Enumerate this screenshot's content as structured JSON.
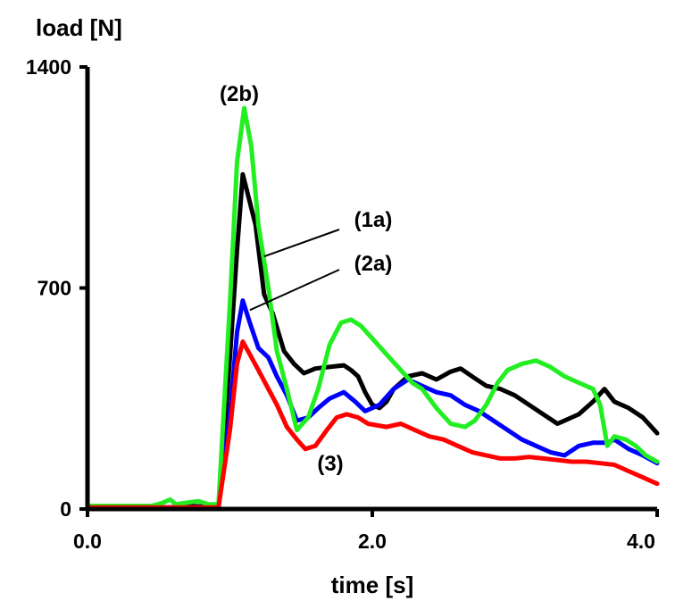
{
  "chart_data": {
    "type": "line",
    "ylabel": "load [N]",
    "xlabel": "time [s]",
    "xlim": [
      0,
      4
    ],
    "ylim": [
      0,
      1400
    ],
    "xticks": [
      {
        "value": 0,
        "label": "0.0"
      },
      {
        "value": 2,
        "label": "2.0"
      },
      {
        "value": 4,
        "label": "4.0"
      }
    ],
    "yticks": [
      {
        "value": 0,
        "label": "0"
      },
      {
        "value": 700,
        "label": "700"
      },
      {
        "value": 1400,
        "label": "1400"
      }
    ],
    "grid": false,
    "legend": "none",
    "series": [
      {
        "name": "(1a)",
        "color": "#000000",
        "points": [
          [
            0,
            5
          ],
          [
            0.6,
            5
          ],
          [
            0.7,
            10
          ],
          [
            0.9,
            6
          ],
          [
            0.92,
            10
          ],
          [
            1.0,
            480
          ],
          [
            1.05,
            820
          ],
          [
            1.09,
            1060
          ],
          [
            1.13,
            990
          ],
          [
            1.18,
            900
          ],
          [
            1.24,
            680
          ],
          [
            1.3,
            620
          ],
          [
            1.38,
            500
          ],
          [
            1.45,
            460
          ],
          [
            1.52,
            430
          ],
          [
            1.6,
            445
          ],
          [
            1.7,
            450
          ],
          [
            1.8,
            455
          ],
          [
            1.85,
            440
          ],
          [
            1.9,
            420
          ],
          [
            1.95,
            370
          ],
          [
            2.0,
            330
          ],
          [
            2.05,
            320
          ],
          [
            2.1,
            340
          ],
          [
            2.15,
            380
          ],
          [
            2.25,
            420
          ],
          [
            2.35,
            430
          ],
          [
            2.45,
            410
          ],
          [
            2.55,
            435
          ],
          [
            2.62,
            445
          ],
          [
            2.7,
            420
          ],
          [
            2.8,
            390
          ],
          [
            2.9,
            380
          ],
          [
            3.0,
            360
          ],
          [
            3.1,
            330
          ],
          [
            3.2,
            300
          ],
          [
            3.3,
            270
          ],
          [
            3.45,
            300
          ],
          [
            3.55,
            340
          ],
          [
            3.63,
            380
          ],
          [
            3.7,
            340
          ],
          [
            3.8,
            320
          ],
          [
            3.9,
            290
          ],
          [
            4.0,
            240
          ]
        ]
      },
      {
        "name": "(2a)",
        "color": "#0000ff",
        "points": [
          [
            0,
            5
          ],
          [
            0.92,
            5
          ],
          [
            1.0,
            300
          ],
          [
            1.05,
            560
          ],
          [
            1.09,
            660
          ],
          [
            1.14,
            590
          ],
          [
            1.2,
            510
          ],
          [
            1.27,
            480
          ],
          [
            1.33,
            420
          ],
          [
            1.4,
            360
          ],
          [
            1.47,
            280
          ],
          [
            1.55,
            290
          ],
          [
            1.62,
            320
          ],
          [
            1.7,
            350
          ],
          [
            1.8,
            370
          ],
          [
            1.88,
            340
          ],
          [
            1.95,
            310
          ],
          [
            2.05,
            330
          ],
          [
            2.15,
            380
          ],
          [
            2.25,
            410
          ],
          [
            2.35,
            390
          ],
          [
            2.45,
            370
          ],
          [
            2.55,
            360
          ],
          [
            2.65,
            330
          ],
          [
            2.75,
            310
          ],
          [
            2.85,
            280
          ],
          [
            2.95,
            250
          ],
          [
            3.05,
            220
          ],
          [
            3.15,
            200
          ],
          [
            3.25,
            180
          ],
          [
            3.35,
            170
          ],
          [
            3.45,
            200
          ],
          [
            3.55,
            210
          ],
          [
            3.65,
            210
          ],
          [
            3.7,
            220
          ],
          [
            3.8,
            190
          ],
          [
            3.9,
            170
          ],
          [
            4.0,
            145
          ]
        ]
      },
      {
        "name": "(2b)",
        "color": "#22ee22",
        "points": [
          [
            0,
            10
          ],
          [
            0.45,
            10
          ],
          [
            0.52,
            18
          ],
          [
            0.58,
            30
          ],
          [
            0.62,
            15
          ],
          [
            0.7,
            20
          ],
          [
            0.78,
            25
          ],
          [
            0.85,
            15
          ],
          [
            0.92,
            15
          ],
          [
            1.0,
            650
          ],
          [
            1.05,
            1100
          ],
          [
            1.1,
            1270
          ],
          [
            1.15,
            1150
          ],
          [
            1.2,
            900
          ],
          [
            1.27,
            700
          ],
          [
            1.33,
            500
          ],
          [
            1.4,
            380
          ],
          [
            1.47,
            250
          ],
          [
            1.55,
            290
          ],
          [
            1.62,
            380
          ],
          [
            1.7,
            520
          ],
          [
            1.78,
            590
          ],
          [
            1.85,
            600
          ],
          [
            1.92,
            580
          ],
          [
            2.0,
            540
          ],
          [
            2.1,
            490
          ],
          [
            2.2,
            440
          ],
          [
            2.28,
            400
          ],
          [
            2.35,
            380
          ],
          [
            2.45,
            320
          ],
          [
            2.55,
            270
          ],
          [
            2.65,
            260
          ],
          [
            2.72,
            280
          ],
          [
            2.8,
            330
          ],
          [
            2.88,
            400
          ],
          [
            2.95,
            440
          ],
          [
            3.05,
            460
          ],
          [
            3.15,
            470
          ],
          [
            3.25,
            450
          ],
          [
            3.35,
            420
          ],
          [
            3.45,
            400
          ],
          [
            3.55,
            380
          ],
          [
            3.6,
            330
          ],
          [
            3.65,
            200
          ],
          [
            3.7,
            230
          ],
          [
            3.78,
            220
          ],
          [
            3.85,
            200
          ],
          [
            3.92,
            170
          ],
          [
            4.0,
            150
          ]
        ]
      },
      {
        "name": "(3)",
        "color": "#ff0000",
        "points": [
          [
            0,
            5
          ],
          [
            0.92,
            5
          ],
          [
            1.0,
            250
          ],
          [
            1.05,
            460
          ],
          [
            1.09,
            530
          ],
          [
            1.14,
            490
          ],
          [
            1.2,
            440
          ],
          [
            1.27,
            380
          ],
          [
            1.33,
            330
          ],
          [
            1.4,
            260
          ],
          [
            1.47,
            220
          ],
          [
            1.53,
            190
          ],
          [
            1.6,
            200
          ],
          [
            1.68,
            250
          ],
          [
            1.75,
            290
          ],
          [
            1.82,
            300
          ],
          [
            1.9,
            290
          ],
          [
            1.97,
            270
          ],
          [
            2.1,
            260
          ],
          [
            2.2,
            270
          ],
          [
            2.3,
            250
          ],
          [
            2.4,
            230
          ],
          [
            2.5,
            220
          ],
          [
            2.6,
            200
          ],
          [
            2.7,
            180
          ],
          [
            2.8,
            170
          ],
          [
            2.9,
            160
          ],
          [
            3.0,
            160
          ],
          [
            3.1,
            165
          ],
          [
            3.2,
            160
          ],
          [
            3.3,
            155
          ],
          [
            3.4,
            150
          ],
          [
            3.5,
            150
          ],
          [
            3.6,
            145
          ],
          [
            3.7,
            140
          ],
          [
            3.8,
            120
          ],
          [
            3.9,
            100
          ],
          [
            4.0,
            80
          ]
        ]
      }
    ],
    "annotations": [
      {
        "text": "(2b)",
        "series": "(2b)",
        "leader": false
      },
      {
        "text": "(1a)",
        "series": "(1a)",
        "leader": true,
        "anchor": [
          1.24,
          800
        ]
      },
      {
        "text": "(2a)",
        "series": "(2a)",
        "leader": true,
        "anchor": [
          1.14,
          630
        ]
      },
      {
        "text": "(3)",
        "series": "(3)",
        "leader": false
      }
    ]
  }
}
